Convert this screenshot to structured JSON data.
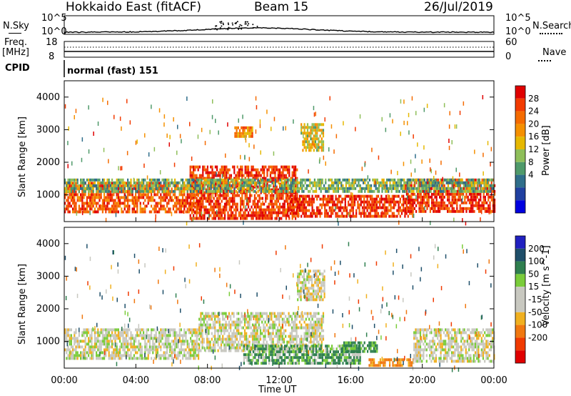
{
  "header": {
    "station": "Hokkaido East (fitACF)",
    "beam": "Beam 15",
    "date": "26/Jul/2019"
  },
  "strip": {
    "nsky_label": "N.Sky",
    "nsky_top": "10^5",
    "nsky_bottom": "10^0",
    "nsearch_label": "N.Search",
    "nsearch_top": "10^5",
    "nsearch_bottom": "10^0",
    "freq_label_1": "Freq.",
    "freq_label_2": "[MHz]",
    "freq_top": "18",
    "freq_bottom": "8",
    "nave_label": "Nave",
    "nave_top": "60",
    "nave_bottom": "0",
    "cpid_label": "CPID",
    "cpid_text": "normal (fast) 151"
  },
  "power_scale": {
    "label": "Power [dB]",
    "ticks": [
      "28",
      "24",
      "20",
      "16",
      "12",
      "8",
      "4"
    ],
    "colors": [
      "#e00000",
      "#f23b00",
      "#f56b00",
      "#f59000",
      "#e6b800",
      "#8fbf5a",
      "#4f9a6a",
      "#2f6e8a",
      "#2040a0",
      "#0000e0"
    ]
  },
  "velocity_scale": {
    "label": "Velocity [m s^-1]",
    "ticks": [
      "200",
      "100",
      "50",
      "15",
      "-15",
      "-50",
      "-100",
      "-200"
    ],
    "colors": [
      "#2020c0",
      "#1f4f6a",
      "#2f7f4f",
      "#7acc3a",
      "#c8c8c0",
      "#c8c8c0",
      "#f0b020",
      "#f07810",
      "#f03a00",
      "#e00000"
    ]
  },
  "chart_data": [
    {
      "type": "heatmap",
      "title": "Power",
      "ylabel": "Slant Range [km]",
      "xlabel": "Time UT",
      "x_ticks": [
        "00:00",
        "04:00",
        "08:00",
        "12:00",
        "16:00",
        "20:00",
        "00:00"
      ],
      "y_ticks": [
        "1000",
        "2000",
        "3000",
        "4000"
      ],
      "ylim": [
        180,
        4500
      ],
      "xlim_hours": [
        0,
        24
      ],
      "clim_db": [
        0,
        30
      ],
      "regions": [
        {
          "t0": 0.0,
          "t1": 7.5,
          "r0": 500,
          "r1": 1400,
          "value_db": 24
        },
        {
          "t0": 7.0,
          "t1": 13.0,
          "r0": 300,
          "r1": 1900,
          "value_db": 26
        },
        {
          "t0": 12.5,
          "t1": 19.5,
          "r0": 300,
          "r1": 1000,
          "value_db": 26
        },
        {
          "t0": 9.5,
          "t1": 10.5,
          "r0": 2800,
          "r1": 3100,
          "value_db": 20
        },
        {
          "t0": 13.2,
          "t1": 14.5,
          "r0": 2400,
          "r1": 3200,
          "value_db": 16
        },
        {
          "t0": 19.0,
          "t1": 24.0,
          "r0": 500,
          "r1": 1500,
          "value_db": 26
        },
        {
          "t0": 0.0,
          "t1": 24.0,
          "r0": 1100,
          "r1": 1500,
          "value_db": 12
        }
      ]
    },
    {
      "type": "heatmap",
      "title": "Velocity",
      "ylabel": "Slant Range [km]",
      "xlabel": "Time UT",
      "x_ticks": [
        "00:00",
        "04:00",
        "08:00",
        "12:00",
        "16:00",
        "20:00",
        "00:00"
      ],
      "y_ticks": [
        "1000",
        "2000",
        "3000",
        "4000"
      ],
      "ylim": [
        180,
        4500
      ],
      "xlim_hours": [
        0,
        24
      ],
      "clim_ms": [
        -250,
        250
      ],
      "regions": [
        {
          "t0": 0.0,
          "t1": 7.5,
          "r0": 500,
          "r1": 1400,
          "value_ms": 0
        },
        {
          "t0": 7.5,
          "t1": 14.5,
          "r0": 700,
          "r1": 1900,
          "value_ms": 0
        },
        {
          "t0": 10.0,
          "t1": 16.5,
          "r0": 300,
          "r1": 900,
          "value_ms": 30
        },
        {
          "t0": 15.5,
          "t1": 17.5,
          "r0": 700,
          "r1": 1000,
          "value_ms": 40
        },
        {
          "t0": 17.0,
          "t1": 19.5,
          "r0": 250,
          "r1": 480,
          "value_ms": -60
        },
        {
          "t0": 19.5,
          "t1": 24.0,
          "r0": 400,
          "r1": 1400,
          "value_ms": 0
        },
        {
          "t0": 13.0,
          "t1": 14.5,
          "r0": 2300,
          "r1": 3200,
          "value_ms": 0
        }
      ]
    }
  ]
}
